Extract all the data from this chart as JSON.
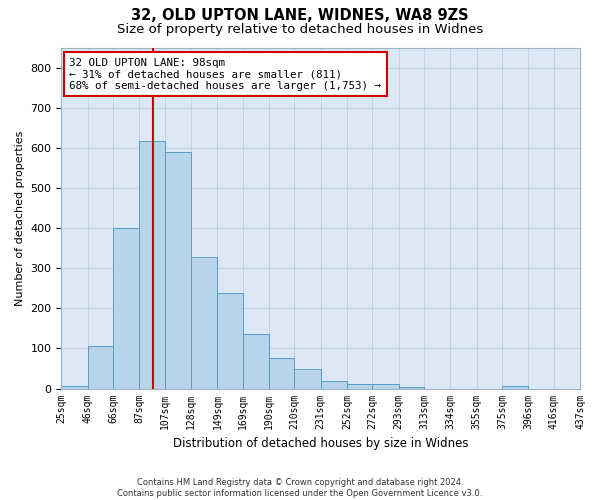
{
  "title1": "32, OLD UPTON LANE, WIDNES, WA8 9ZS",
  "title2": "Size of property relative to detached houses in Widnes",
  "xlabel": "Distribution of detached houses by size in Widnes",
  "ylabel": "Number of detached properties",
  "footnote": "Contains HM Land Registry data © Crown copyright and database right 2024.\nContains public sector information licensed under the Open Government Licence v3.0.",
  "bin_edges": [
    25,
    46,
    66,
    87,
    107,
    128,
    149,
    169,
    190,
    210,
    231,
    252,
    272,
    293,
    313,
    334,
    355,
    375,
    396,
    416,
    437
  ],
  "bin_heights": [
    7,
    107,
    401,
    616,
    590,
    328,
    237,
    135,
    77,
    49,
    18,
    12,
    12,
    5,
    0,
    0,
    0,
    7,
    0,
    0
  ],
  "tick_labels": [
    "25sqm",
    "46sqm",
    "66sqm",
    "87sqm",
    "107sqm",
    "128sqm",
    "149sqm",
    "169sqm",
    "190sqm",
    "210sqm",
    "231sqm",
    "252sqm",
    "272sqm",
    "293sqm",
    "313sqm",
    "334sqm",
    "355sqm",
    "375sqm",
    "396sqm",
    "416sqm",
    "437sqm"
  ],
  "bar_color": "#b8d4ea",
  "bar_edge_color": "#5a9cc5",
  "vline_x": 98,
  "vline_color": "#cc0000",
  "annotation_text": "32 OLD UPTON LANE: 98sqm\n← 31% of detached houses are smaller (811)\n68% of semi-detached houses are larger (1,753) →",
  "annotation_box_color": "#ffffff",
  "annotation_box_edge": "#cc0000",
  "ylim": [
    0,
    850
  ],
  "yticks": [
    0,
    100,
    200,
    300,
    400,
    500,
    600,
    700,
    800
  ],
  "bg_color": "#ffffff",
  "axes_bg_color": "#dce8f5",
  "grid_color": "#c0cfe0",
  "title1_fontsize": 10.5,
  "title2_fontsize": 9.5,
  "xlabel_fontsize": 8.5,
  "ylabel_fontsize": 8,
  "tick_fontsize": 7
}
